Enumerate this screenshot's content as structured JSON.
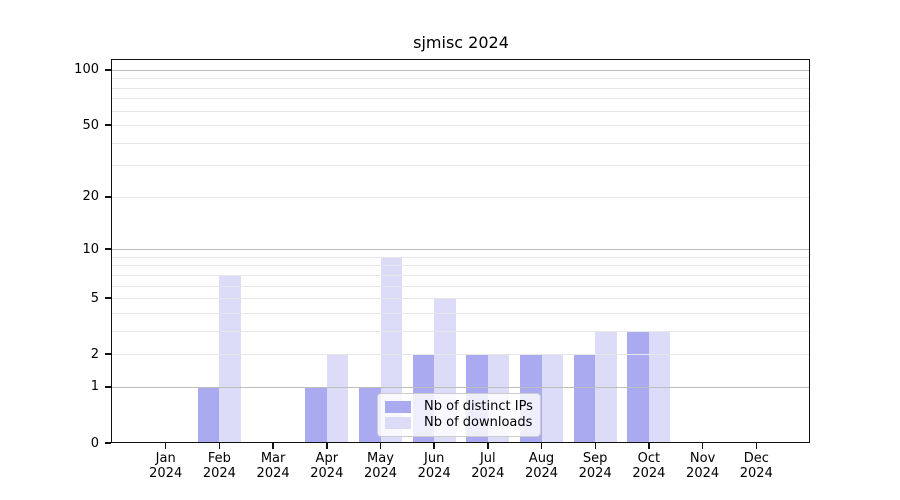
{
  "title": "sjmisc 2024",
  "chart_data": {
    "type": "bar",
    "title": "sjmisc 2024",
    "categories": [
      "Jan",
      "Feb",
      "Mar",
      "Apr",
      "May",
      "Jun",
      "Jul",
      "Aug",
      "Sep",
      "Oct",
      "Nov",
      "Dec"
    ],
    "year_label": "2024",
    "series": [
      {
        "name": "Nb of distinct IPs",
        "color": "#aaaaf0",
        "values": [
          0,
          1,
          0,
          1,
          1,
          2,
          2,
          2,
          2,
          3,
          0,
          0
        ]
      },
      {
        "name": "Nb of downloads",
        "color": "#dcdcf8",
        "values": [
          0,
          7,
          0,
          2,
          9,
          5,
          2,
          2,
          3,
          3,
          0,
          0
        ]
      }
    ],
    "xlabel": "",
    "ylabel": "",
    "yscale": "log1p",
    "ylim": [
      0,
      113
    ],
    "yticks": [
      0,
      1,
      2,
      5,
      10,
      20,
      50,
      100
    ],
    "grid": {
      "on": true,
      "major_values": [
        1,
        10,
        100
      ],
      "minor_values": [
        2,
        3,
        4,
        5,
        6,
        7,
        8,
        9,
        20,
        30,
        40,
        50,
        60,
        70,
        80,
        90
      ]
    },
    "legend_position": "lower-center-inside",
    "bar_width": 0.4
  }
}
